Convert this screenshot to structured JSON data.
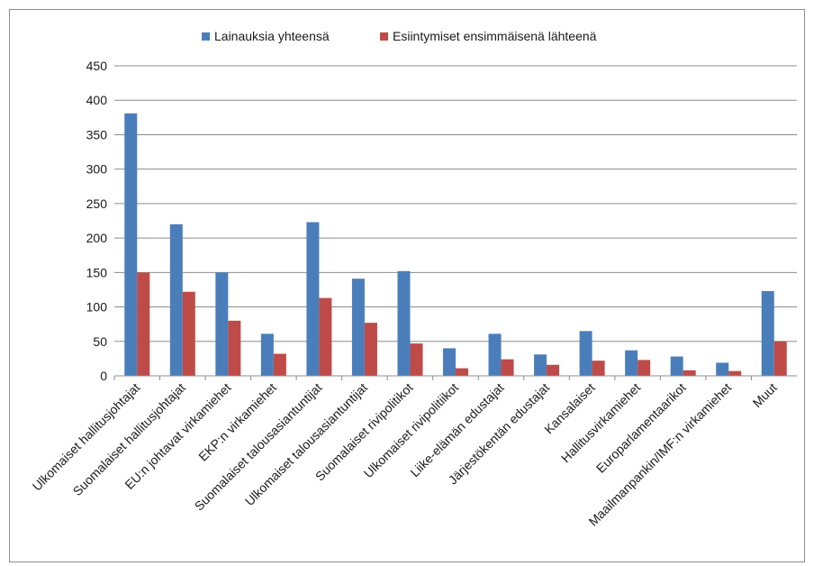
{
  "chart_data": {
    "type": "bar",
    "categories": [
      "Ulkomaiset hallitusjohtajat",
      "Suomalaiset hallitusjohtajat",
      "EU:n johtavat virkamiehet",
      "EKP:n virkamiehet",
      "Suomalaiset talousasiantuntijat",
      "Ulkomaiset talousasiantuntijat",
      "Suomalaiset rivipolitikot",
      "Ulkomaiset rivipolitiikot",
      "Liike-elämän edustajat",
      "Järjestökentän edustajat",
      "Kansalaiset",
      "Hallitusvirkamiehet",
      "Europarlamentaarikot",
      "Maailmanpankin/IMF:n virkamiehet",
      "Muut"
    ],
    "series": [
      {
        "name": "Lainauksia yhteensä",
        "color": "#4a7ebb",
        "values": [
          381,
          220,
          150,
          61,
          223,
          141,
          152,
          40,
          61,
          31,
          65,
          37,
          28,
          19,
          123
        ]
      },
      {
        "name": "Esiintymiset ensimmäisenä lähteenä",
        "color": "#be4b48",
        "values": [
          150,
          122,
          80,
          32,
          113,
          77,
          47,
          11,
          24,
          16,
          22,
          23,
          8,
          7,
          50
        ]
      }
    ],
    "title": "",
    "xlabel": "",
    "ylabel": "",
    "ylim": [
      0,
      450
    ],
    "yticks": [
      0,
      50,
      100,
      150,
      200,
      250,
      300,
      350,
      400,
      450
    ],
    "grid": true,
    "legend_position": "top"
  }
}
